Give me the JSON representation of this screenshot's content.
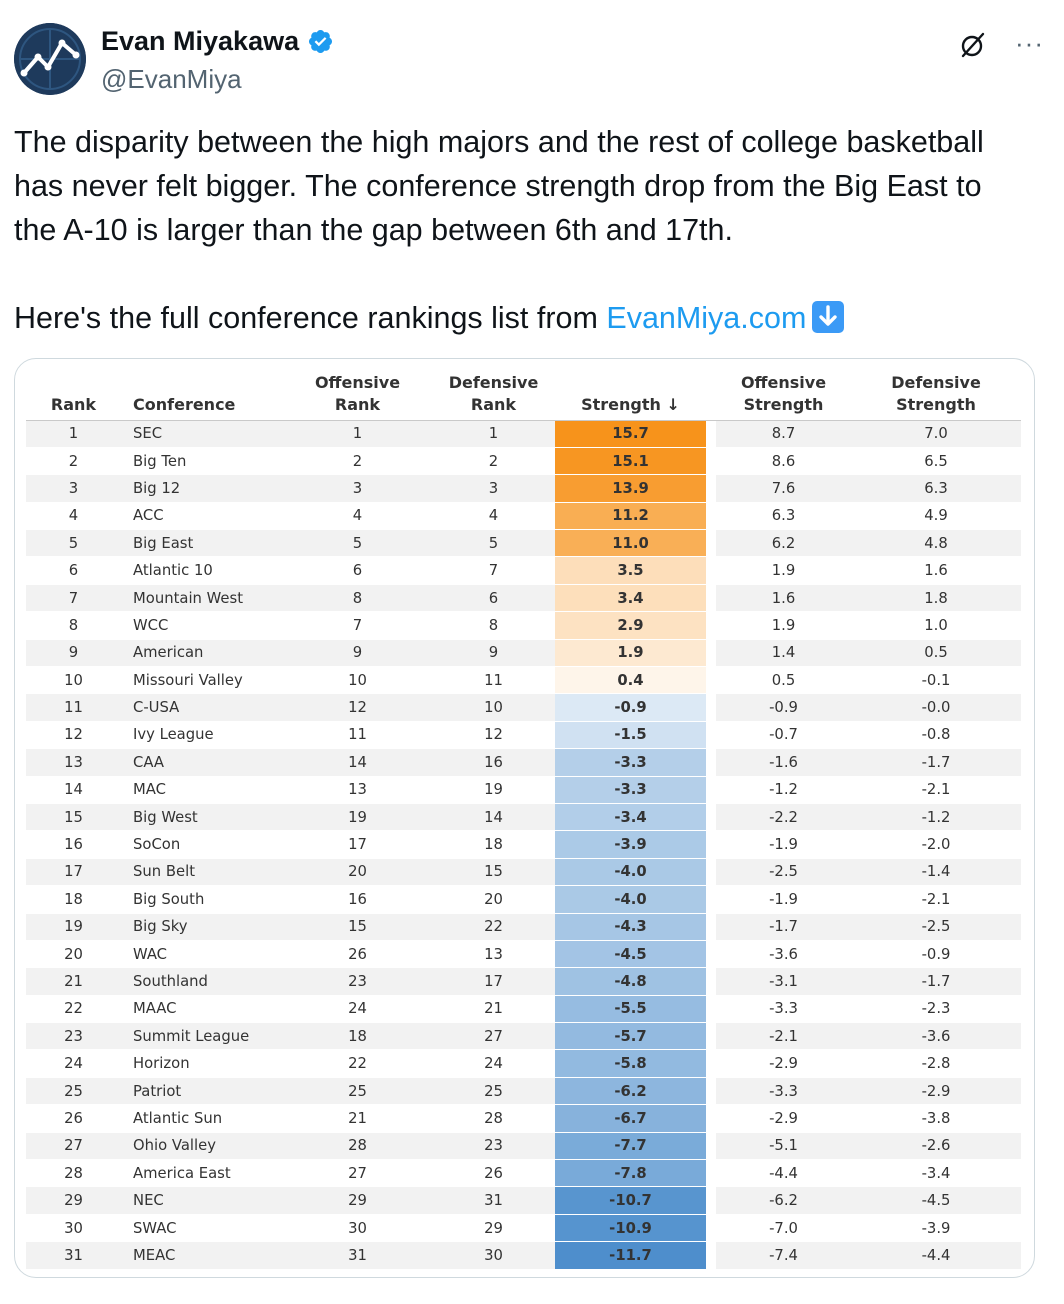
{
  "author": {
    "display_name": "Evan Miyakawa",
    "handle": "@EvanMiya",
    "verified": true,
    "avatar_icon": "chart-line-avatar-icon"
  },
  "actions": {
    "grok_icon": "grok-icon",
    "more_label": "···"
  },
  "tweet": {
    "line1": "The disparity between the high majors and the rest of college basketball",
    "line2": "has never felt bigger. The conference strength drop from the Big East to",
    "line3": "the A-10 is larger than the gap between 6th and 17th.",
    "line4_prefix": "Here's the full conference rankings list from ",
    "link_text": "EvanMiya.com",
    "emoji": "down-arrow-emoji"
  },
  "table": {
    "headers": {
      "rank": "Rank",
      "conference": "Conference",
      "off_rank_1": "Offensive",
      "off_rank_2": "Rank",
      "def_rank_1": "Defensive",
      "def_rank_2": "Rank",
      "strength": "Strength ↓",
      "off_str_1": "Offensive",
      "off_str_2": "Strength",
      "def_str_1": "Defensive",
      "def_str_2": "Strength"
    },
    "rows": [
      {
        "rank": "1",
        "conf": "SEC",
        "orank": "1",
        "drank": "1",
        "str": "15.7",
        "ostr": "8.7",
        "dstr": "7.0"
      },
      {
        "rank": "2",
        "conf": "Big Ten",
        "orank": "2",
        "drank": "2",
        "str": "15.1",
        "ostr": "8.6",
        "dstr": "6.5"
      },
      {
        "rank": "3",
        "conf": "Big 12",
        "orank": "3",
        "drank": "3",
        "str": "13.9",
        "ostr": "7.6",
        "dstr": "6.3"
      },
      {
        "rank": "4",
        "conf": "ACC",
        "orank": "4",
        "drank": "4",
        "str": "11.2",
        "ostr": "6.3",
        "dstr": "4.9"
      },
      {
        "rank": "5",
        "conf": "Big East",
        "orank": "5",
        "drank": "5",
        "str": "11.0",
        "ostr": "6.2",
        "dstr": "4.8"
      },
      {
        "rank": "6",
        "conf": "Atlantic 10",
        "orank": "6",
        "drank": "7",
        "str": "3.5",
        "ostr": "1.9",
        "dstr": "1.6"
      },
      {
        "rank": "7",
        "conf": "Mountain West",
        "orank": "8",
        "drank": "6",
        "str": "3.4",
        "ostr": "1.6",
        "dstr": "1.8"
      },
      {
        "rank": "8",
        "conf": "WCC",
        "orank": "7",
        "drank": "8",
        "str": "2.9",
        "ostr": "1.9",
        "dstr": "1.0"
      },
      {
        "rank": "9",
        "conf": "American",
        "orank": "9",
        "drank": "9",
        "str": "1.9",
        "ostr": "1.4",
        "dstr": "0.5"
      },
      {
        "rank": "10",
        "conf": "Missouri Valley",
        "orank": "10",
        "drank": "11",
        "str": "0.4",
        "ostr": "0.5",
        "dstr": "-0.1"
      },
      {
        "rank": "11",
        "conf": "C-USA",
        "orank": "12",
        "drank": "10",
        "str": "-0.9",
        "ostr": "-0.9",
        "dstr": "-0.0"
      },
      {
        "rank": "12",
        "conf": "Ivy League",
        "orank": "11",
        "drank": "12",
        "str": "-1.5",
        "ostr": "-0.7",
        "dstr": "-0.8"
      },
      {
        "rank": "13",
        "conf": "CAA",
        "orank": "14",
        "drank": "16",
        "str": "-3.3",
        "ostr": "-1.6",
        "dstr": "-1.7"
      },
      {
        "rank": "14",
        "conf": "MAC",
        "orank": "13",
        "drank": "19",
        "str": "-3.3",
        "ostr": "-1.2",
        "dstr": "-2.1"
      },
      {
        "rank": "15",
        "conf": "Big West",
        "orank": "19",
        "drank": "14",
        "str": "-3.4",
        "ostr": "-2.2",
        "dstr": "-1.2"
      },
      {
        "rank": "16",
        "conf": "SoCon",
        "orank": "17",
        "drank": "18",
        "str": "-3.9",
        "ostr": "-1.9",
        "dstr": "-2.0"
      },
      {
        "rank": "17",
        "conf": "Sun Belt",
        "orank": "20",
        "drank": "15",
        "str": "-4.0",
        "ostr": "-2.5",
        "dstr": "-1.4"
      },
      {
        "rank": "18",
        "conf": "Big South",
        "orank": "16",
        "drank": "20",
        "str": "-4.0",
        "ostr": "-1.9",
        "dstr": "-2.1"
      },
      {
        "rank": "19",
        "conf": "Big Sky",
        "orank": "15",
        "drank": "22",
        "str": "-4.3",
        "ostr": "-1.7",
        "dstr": "-2.5"
      },
      {
        "rank": "20",
        "conf": "WAC",
        "orank": "26",
        "drank": "13",
        "str": "-4.5",
        "ostr": "-3.6",
        "dstr": "-0.9"
      },
      {
        "rank": "21",
        "conf": "Southland",
        "orank": "23",
        "drank": "17",
        "str": "-4.8",
        "ostr": "-3.1",
        "dstr": "-1.7"
      },
      {
        "rank": "22",
        "conf": "MAAC",
        "orank": "24",
        "drank": "21",
        "str": "-5.5",
        "ostr": "-3.3",
        "dstr": "-2.3"
      },
      {
        "rank": "23",
        "conf": "Summit League",
        "orank": "18",
        "drank": "27",
        "str": "-5.7",
        "ostr": "-2.1",
        "dstr": "-3.6"
      },
      {
        "rank": "24",
        "conf": "Horizon",
        "orank": "22",
        "drank": "24",
        "str": "-5.8",
        "ostr": "-2.9",
        "dstr": "-2.8"
      },
      {
        "rank": "25",
        "conf": "Patriot",
        "orank": "25",
        "drank": "25",
        "str": "-6.2",
        "ostr": "-3.3",
        "dstr": "-2.9"
      },
      {
        "rank": "26",
        "conf": "Atlantic Sun",
        "orank": "21",
        "drank": "28",
        "str": "-6.7",
        "ostr": "-2.9",
        "dstr": "-3.8"
      },
      {
        "rank": "27",
        "conf": "Ohio Valley",
        "orank": "28",
        "drank": "23",
        "str": "-7.7",
        "ostr": "-5.1",
        "dstr": "-2.6"
      },
      {
        "rank": "28",
        "conf": "America East",
        "orank": "27",
        "drank": "26",
        "str": "-7.8",
        "ostr": "-4.4",
        "dstr": "-3.4"
      },
      {
        "rank": "29",
        "conf": "NEC",
        "orank": "29",
        "drank": "31",
        "str": "-10.7",
        "ostr": "-6.2",
        "dstr": "-4.5"
      },
      {
        "rank": "30",
        "conf": "SWAC",
        "orank": "30",
        "drank": "29",
        "str": "-10.9",
        "ostr": "-7.0",
        "dstr": "-3.9"
      },
      {
        "rank": "31",
        "conf": "MEAC",
        "orank": "31",
        "drank": "30",
        "str": "-11.7",
        "ostr": "-7.4",
        "dstr": "-4.4"
      }
    ],
    "color_scale": {
      "positive_max": "#f7941d",
      "neutral": "#ffffff",
      "negative_max": "#4a8ccb",
      "max_value": 15.7,
      "min_value": -11.7
    }
  }
}
